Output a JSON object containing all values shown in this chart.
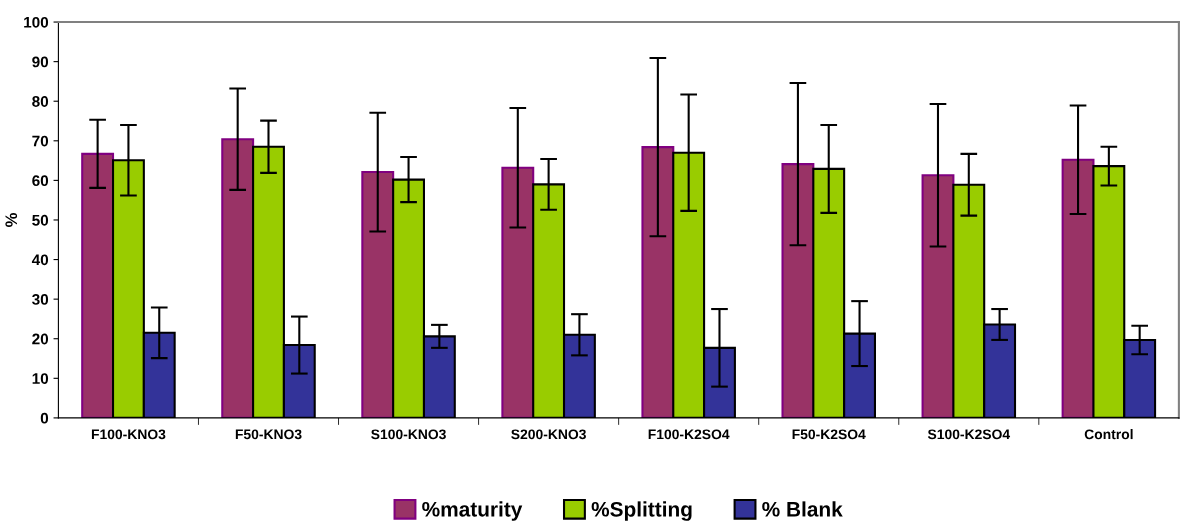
{
  "chart_data": {
    "type": "bar",
    "ylabel": "%",
    "categories": [
      "F100-KNO3",
      "F50-KNO3",
      "S100-KNO3",
      "S200-KNO3",
      "F100-K2SO4",
      "F50-K2SO4",
      "S100-K2SO4",
      "Control"
    ],
    "series": [
      {
        "name": "%maturity",
        "color": "#993366",
        "values": [
          66.7,
          70.4,
          62.1,
          63.2,
          68.4,
          64.1,
          61.3,
          65.2
        ],
        "errors": [
          8.6,
          12.8,
          15.0,
          15.1,
          22.5,
          20.5,
          18.0,
          13.7
        ]
      },
      {
        "name": "%Splitting",
        "color": "#99cc00",
        "values": [
          65.1,
          68.5,
          60.2,
          59.0,
          67.0,
          62.9,
          58.9,
          63.6
        ],
        "errors": [
          8.9,
          6.6,
          5.7,
          6.4,
          14.7,
          11.1,
          7.8,
          4.9
        ]
      },
      {
        "name": "% Blank",
        "color": "#333399",
        "values": [
          21.5,
          18.4,
          20.6,
          21.0,
          17.7,
          21.3,
          23.6,
          19.7
        ],
        "errors": [
          6.4,
          7.2,
          2.9,
          5.2,
          9.8,
          8.2,
          3.9,
          3.6
        ]
      }
    ],
    "ylim": [
      0,
      100
    ],
    "yticks": [
      0,
      10,
      20,
      30,
      40,
      50,
      60,
      70,
      80,
      90,
      100
    ],
    "grid": false,
    "legend": "bottom"
  }
}
